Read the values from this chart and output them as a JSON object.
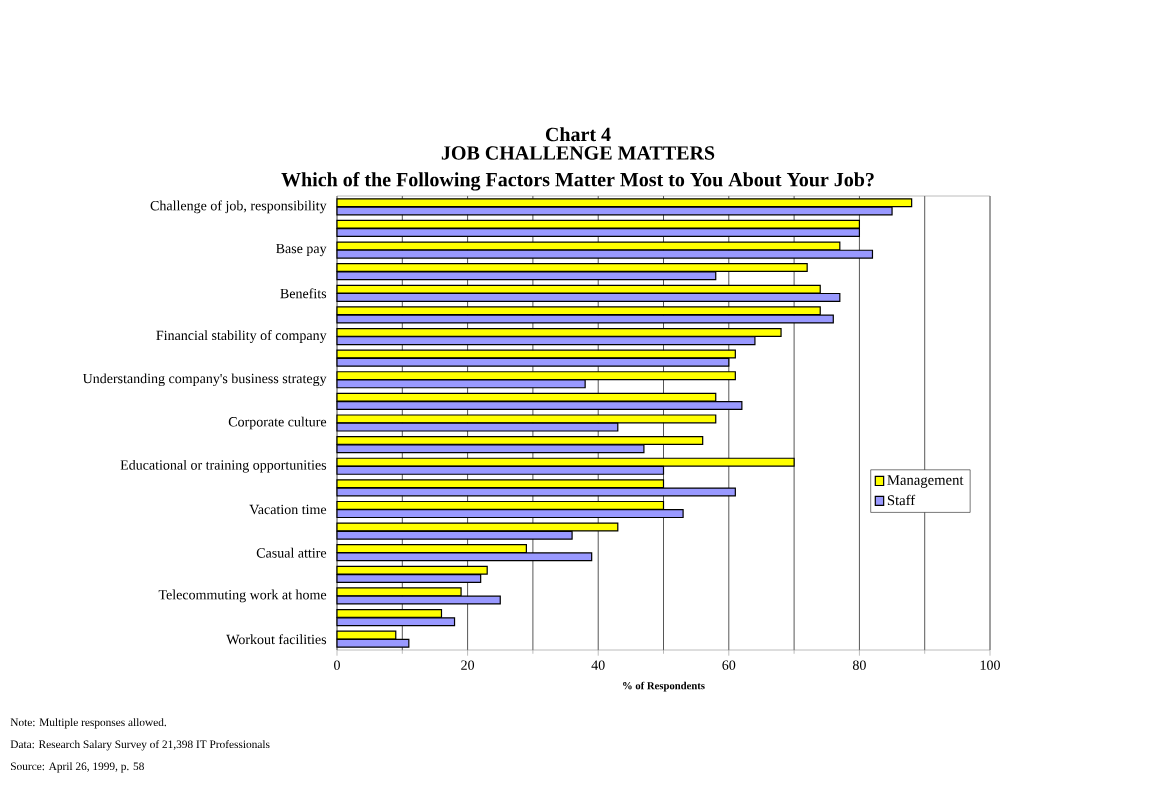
{
  "chart_data": {
    "type": "bar",
    "orientation": "horizontal",
    "title": "Chart 4",
    "subtitle": "JOB CHALLENGE MATTERS\nWhich of the Following Factors Matter Most to You About Your Job?",
    "categories": [
      "Challenge of job, responsibility",
      null,
      "Base pay",
      null,
      "Benefits",
      null,
      "Financial stability of company",
      null,
      "Understanding company's business strategy",
      null,
      "Corporate culture",
      null,
      "Educational or training opportunities",
      null,
      "Vacation time",
      null,
      "Casual attire",
      null,
      "Telecommuting work at home",
      null,
      "Workout facilities"
    ],
    "series": [
      {
        "name": "Management",
        "color": "#ffff00",
        "values": [
          88,
          80,
          77,
          72,
          74,
          74,
          68,
          61,
          61,
          58,
          58,
          56,
          70,
          50,
          50,
          43,
          29,
          23,
          19,
          16,
          9
        ]
      },
      {
        "name": "Staff",
        "color": "#9999ff",
        "values": [
          85,
          80,
          82,
          58,
          77,
          76,
          64,
          60,
          38,
          62,
          43,
          47,
          50,
          61,
          53,
          36,
          39,
          22,
          25,
          18,
          11
        ]
      }
    ],
    "xlim": [
      0,
      100
    ],
    "xticks": [
      0,
      20,
      40,
      60,
      80,
      100
    ],
    "xlabel": "% of Respondents",
    "grid": "x",
    "legend": "right",
    "annotations": [
      "Note: Multiple responses allowed.",
      "Data: Research Salary Survey of 21,398 IT Professionals",
      "Source: April 26, 1999, p. 58"
    ]
  }
}
